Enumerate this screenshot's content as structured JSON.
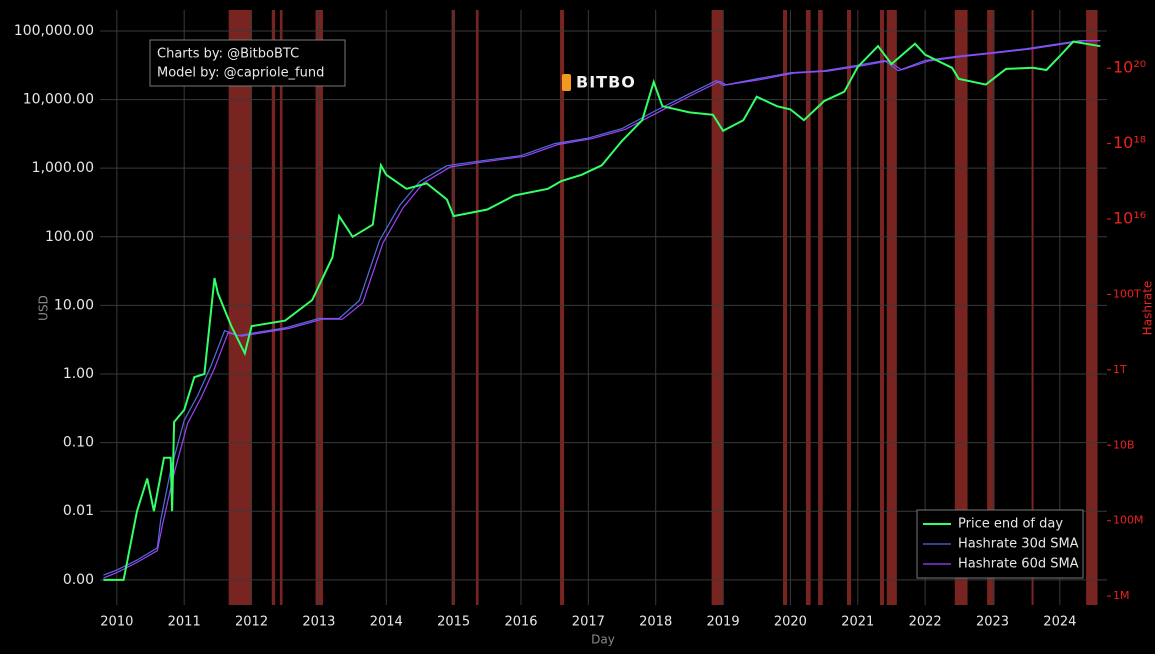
{
  "chart_data": {
    "type": "line",
    "annotation": [
      "Charts by: @BitboBTC",
      "Model by: @capriole_fund"
    ],
    "logo": "BITBO",
    "xlabel": "Day",
    "ylabel": "USD",
    "y2label": "Hashrate",
    "xlim": [
      2009.75,
      2024.7
    ],
    "xticks": [
      2010,
      2011,
      2012,
      2013,
      2014,
      2015,
      2016,
      2017,
      2018,
      2019,
      2020,
      2021,
      2022,
      2023,
      2024
    ],
    "ylim": [
      0.00043,
      202000
    ],
    "log_y": true,
    "yticks": [
      {
        "value": 0.001,
        "label": "0.00"
      },
      0.01,
      {
        "value": 0.1,
        "label": "0.10"
      },
      {
        "value": 1,
        "label": "1.00"
      },
      {
        "value": 10,
        "label": "10.00"
      },
      {
        "value": 100,
        "label": "100.00"
      },
      {
        "value": 1000,
        "label": "1,000.00"
      },
      {
        "value": 10000,
        "label": "10,000.00"
      },
      {
        "value": 100000,
        "label": "100,000.00"
      }
    ],
    "y2lim": [
      580000,
      3.5e+21
    ],
    "log_y2": true,
    "y2ticks": [
      {
        "value": 1000000.0,
        "label": "1M"
      },
      {
        "value": 100000000.0,
        "label": "100M"
      },
      {
        "value": 10000000000.0,
        "label": "10B"
      },
      {
        "value": 1000000000000.0,
        "label": "1T"
      },
      {
        "value": 100000000000000.0,
        "label": "100T"
      },
      {
        "value": 1e+16,
        "label": "10¹⁶"
      },
      {
        "value": 1e+18,
        "label": "10¹⁸"
      },
      {
        "value": 1e+20,
        "label": "10²⁰"
      }
    ],
    "y2color": "#e8231f",
    "grid": true,
    "band_color": "#a0302c",
    "bands": [
      [
        2011.66,
        2012.0
      ],
      [
        2012.3,
        2012.35
      ],
      [
        2012.42,
        2012.46
      ],
      [
        2012.95,
        2013.06
      ],
      [
        2014.97,
        2015.02
      ],
      [
        2015.33,
        2015.37
      ],
      [
        2016.58,
        2016.64
      ],
      [
        2018.83,
        2019.01
      ],
      [
        2019.89,
        2019.95
      ],
      [
        2020.23,
        2020.3
      ],
      [
        2020.41,
        2020.48
      ],
      [
        2020.84,
        2020.9
      ],
      [
        2021.33,
        2021.39
      ],
      [
        2021.43,
        2021.58
      ],
      [
        2022.44,
        2022.63
      ],
      [
        2022.92,
        2023.03
      ],
      [
        2023.58,
        2023.61
      ],
      [
        2024.39,
        2024.56
      ]
    ],
    "legend": "bottom-right",
    "series": [
      {
        "name": "Price end of day",
        "color": "#33ff66",
        "axis": "y",
        "x": [
          2009.8,
          2010.0,
          2010.1,
          2010.3,
          2010.45,
          2010.55,
          2010.7,
          2010.8,
          2010.82,
          2010.85,
          2011.0,
          2011.15,
          2011.3,
          2011.45,
          2011.5,
          2011.7,
          2011.9,
          2012.0,
          2012.5,
          2012.9,
          2013.2,
          2013.3,
          2013.5,
          2013.8,
          2013.92,
          2014.0,
          2014.3,
          2014.6,
          2014.9,
          2015.0,
          2015.5,
          2015.9,
          2016.4,
          2016.6,
          2016.9,
          2017.2,
          2017.5,
          2017.8,
          2017.97,
          2018.1,
          2018.5,
          2018.85,
          2019.0,
          2019.3,
          2019.5,
          2019.8,
          2020.0,
          2020.2,
          2020.5,
          2020.8,
          2021.0,
          2021.3,
          2021.5,
          2021.85,
          2022.0,
          2022.4,
          2022.5,
          2022.9,
          2023.2,
          2023.6,
          2023.8,
          2024.0,
          2024.2,
          2024.6
        ],
        "values": [
          0.001,
          0.001,
          0.001,
          0.01,
          0.03,
          0.01,
          0.06,
          0.06,
          0.01,
          0.2,
          0.3,
          0.9,
          1,
          25,
          15,
          5,
          2,
          5,
          6,
          12,
          50,
          200,
          100,
          150,
          1100,
          800,
          500,
          600,
          350,
          200,
          250,
          400,
          500,
          650,
          800,
          1100,
          2500,
          5000,
          18000,
          8000,
          6500,
          6000,
          3500,
          5000,
          11000,
          8000,
          7200,
          5000,
          9500,
          13000,
          30000,
          60000,
          33000,
          65000,
          45000,
          29000,
          20000,
          16500,
          28000,
          29000,
          27000,
          43000,
          70000,
          60000
        ]
      },
      {
        "name": "Hashrate 30d SMA",
        "color": "#4f6fd8",
        "axis": "y2",
        "x": [
          2009.8,
          2010.0,
          2010.3,
          2010.6,
          2010.65,
          2010.8,
          2011.0,
          2011.2,
          2011.4,
          2011.6,
          2011.8,
          2012.0,
          2012.5,
          2013.0,
          2013.3,
          2013.6,
          2013.9,
          2014.2,
          2014.5,
          2014.9,
          2015.3,
          2016.0,
          2016.5,
          2017.0,
          2017.5,
          2018.0,
          2018.5,
          2018.9,
          2019.0,
          2019.5,
          2020.0,
          2020.5,
          2021.0,
          2021.4,
          2021.6,
          2022.0,
          2022.5,
          2023.0,
          2023.5,
          2024.0,
          2024.3,
          2024.6
        ],
        "values": [
          3600000.0,
          4900000.0,
          9000000.0,
          19000000.0,
          100000000.0,
          2200000000.0,
          46000000000.0,
          210000000000.0,
          1300000000000.0,
          11000000000000.0,
          8100000000000.0,
          9300000000000.0,
          13000000000000.0,
          23000000000000.0,
          23000000000000.0,
          69000000000000.0,
          2700000000000000.0,
          2.3e+16,
          1e+17,
          2.6e+17,
          3.3e+17,
          4.8e+17,
          1e+18,
          1.4e+18,
          2.5e+18,
          7.5e+18,
          2.1e+19,
          4.7e+19,
          3.5e+19,
          5.2e+19,
          7.6e+19,
          8.6e+19,
          1.2e+20,
          1.6e+20,
          8.6e+19,
          1.6e+20,
          2.1e+20,
          2.6e+20,
          3.3e+20,
          4.5e+20,
          5.4e+20,
          5.4e+20
        ]
      },
      {
        "name": "Hashrate 60d SMA",
        "color": "#a040ff",
        "axis": "y2",
        "x": [
          2009.8,
          2010.0,
          2010.3,
          2010.6,
          2010.68,
          2010.85,
          2011.05,
          2011.25,
          2011.45,
          2011.65,
          2011.85,
          2012.05,
          2012.55,
          2013.05,
          2013.35,
          2013.65,
          2013.95,
          2014.25,
          2014.55,
          2014.95,
          2015.35,
          2016.05,
          2016.55,
          2017.05,
          2017.55,
          2018.05,
          2018.55,
          2018.95,
          2019.05,
          2019.55,
          2020.05,
          2020.55,
          2021.05,
          2021.45,
          2021.65,
          2022.05,
          2022.55,
          2023.05,
          2023.55,
          2024.05,
          2024.35,
          2024.6
        ],
        "values": [
          3000000.0,
          4200000.0,
          7800000.0,
          16000000.0,
          80000000.0,
          1800000000.0,
          38000000000.0,
          180000000000.0,
          1100000000000.0,
          9500000000000.0,
          7800000000000.0,
          9000000000000.0,
          12500000000000.0,
          22000000000000.0,
          22000000000000.0,
          60000000000000.0,
          2300000000000000.0,
          2e+16,
          9e+16,
          2.4e+17,
          3.1e+17,
          4.6e+17,
          9.5e+17,
          1.35e+18,
          2.4e+18,
          7e+18,
          2e+19,
          4.5e+19,
          3.6e+19,
          5e+19,
          7.4e+19,
          8.4e+19,
          1.15e+20,
          1.55e+20,
          9e+19,
          1.55e+20,
          2.05e+20,
          2.55e+20,
          3.2e+20,
          4.4e+20,
          5.3e+20,
          5.4e+20
        ]
      }
    ]
  }
}
